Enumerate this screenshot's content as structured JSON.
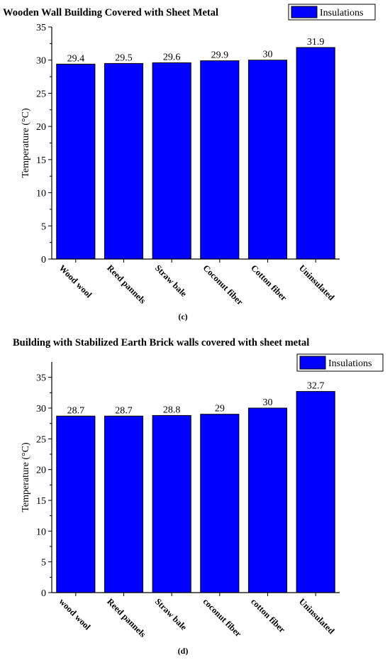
{
  "chart_data": [
    {
      "type": "bar",
      "title": "Wooden Wall Building Covered with Sheet Metal",
      "ylabel": "Temperature (°C)",
      "xlabel": "",
      "ylim": [
        0,
        35
      ],
      "yticks": [
        0,
        5,
        10,
        15,
        20,
        25,
        30,
        35
      ],
      "categories": [
        "Wood wool",
        "Reed pannels",
        "Straw bale",
        "Coconut fiber",
        "Cotton fiber",
        "Uninsulated"
      ],
      "series": [
        {
          "name": "Insulations",
          "values": [
            29.4,
            29.5,
            29.6,
            29.9,
            30,
            31.9
          ]
        }
      ],
      "data_labels": [
        "29.4",
        "29.5",
        "29.6",
        "29.9",
        "30",
        "31.9"
      ],
      "legend": "top-right",
      "grid": false,
      "panel_label": "(c)",
      "bar_color": "#0000ff"
    },
    {
      "type": "bar",
      "title": "Building with Stabilized Earth Brick walls covered with sheet metal",
      "ylabel": "Temperature (°C)",
      "xlabel": "",
      "ylim": [
        0,
        37.5
      ],
      "yticks": [
        0,
        5,
        10,
        15,
        20,
        25,
        30,
        35
      ],
      "categories": [
        "wood wool",
        "Reed pannels",
        "Straw bale",
        "coconut fiber",
        "cotton fiber",
        "Uninsulated"
      ],
      "series": [
        {
          "name": "Insulations",
          "values": [
            28.7,
            28.7,
            28.8,
            29,
            30,
            32.7
          ]
        }
      ],
      "data_labels": [
        "28.7",
        "28.7",
        "28.8",
        "29",
        "30",
        "32.7"
      ],
      "legend": "top-right",
      "grid": false,
      "panel_label": "(d)",
      "bar_color": "#0000ff"
    }
  ]
}
